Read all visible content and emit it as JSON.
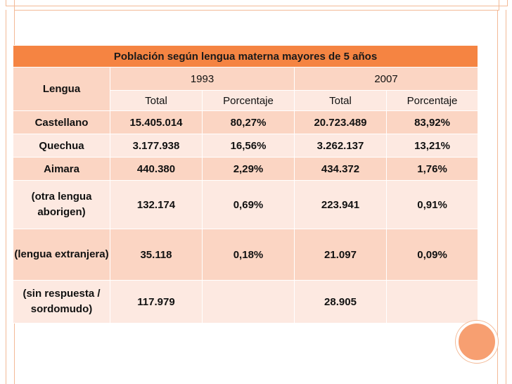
{
  "table": {
    "title": "Población según lengua materna mayores de 5 años",
    "row_header": "Lengua",
    "years": [
      "1993",
      "2007"
    ],
    "subheaders": [
      "Total",
      "Porcentaje",
      "Total",
      "Porcentaje"
    ],
    "rows": [
      {
        "label": "Castellano",
        "t1993": "15.405.014",
        "p1993": "80,27%",
        "t2007": "20.723.489",
        "p2007": "83,92%"
      },
      {
        "label": "Quechua",
        "t1993": "3.177.938",
        "p1993": "16,56%",
        "t2007": "3.262.137",
        "p2007": "13,21%"
      },
      {
        "label": "Aimara",
        "t1993": "440.380",
        "p1993": "2,29%",
        "t2007": "434.372",
        "p2007": "1,76%"
      },
      {
        "label": "(otra lengua aborigen)",
        "t1993": "132.174",
        "p1993": "0,69%",
        "t2007": "223.941",
        "p2007": "0,91%"
      },
      {
        "label": "(lengua extranjera)",
        "t1993": "35.118",
        "p1993": "0,18%",
        "t2007": "21.097",
        "p2007": "0,09%"
      },
      {
        "label": "(sin respuesta / sordomudo)",
        "t1993": "117.979",
        "p1993": "",
        "t2007": "28.905",
        "p2007": ""
      }
    ]
  },
  "colors": {
    "header_orange": "#f58442",
    "row_dark": "#fbd5c3",
    "row_light": "#fde9e1",
    "accent_circle": "#f79f71",
    "frame_line": "#f3b996"
  }
}
